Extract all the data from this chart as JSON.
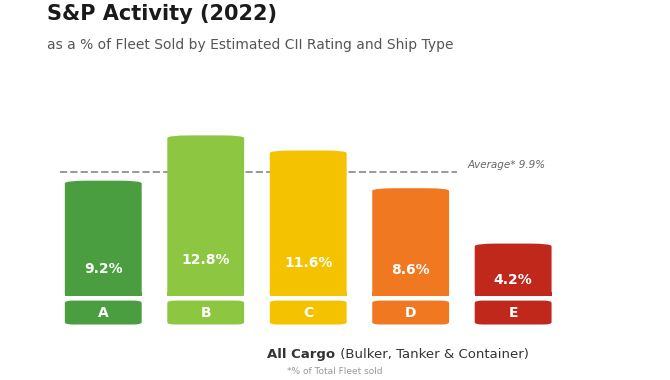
{
  "title": "S&P Activity (2022)",
  "subtitle": "as a % of Fleet Sold by Estimated CII Rating and Ship Type",
  "categories": [
    "A",
    "B",
    "C",
    "D",
    "E"
  ],
  "values": [
    9.2,
    12.8,
    11.6,
    8.6,
    4.2
  ],
  "bar_colors": [
    "#4a9e3f",
    "#8dc641",
    "#f5c200",
    "#f07820",
    "#c0281c"
  ],
  "value_labels": [
    "9.2%",
    "12.8%",
    "11.6%",
    "8.6%",
    "4.2%"
  ],
  "average_value": 9.9,
  "average_label": "Average* 9.9%",
  "xlabel_bold": "All Cargo",
  "xlabel_normal": " (Bulker, Tanker & Container)",
  "footnote": "*% of Total Fleet sold",
  "ylim_max": 14.5,
  "background_color": "#ffffff",
  "title_fontsize": 15,
  "subtitle_fontsize": 10,
  "bar_width": 0.75
}
